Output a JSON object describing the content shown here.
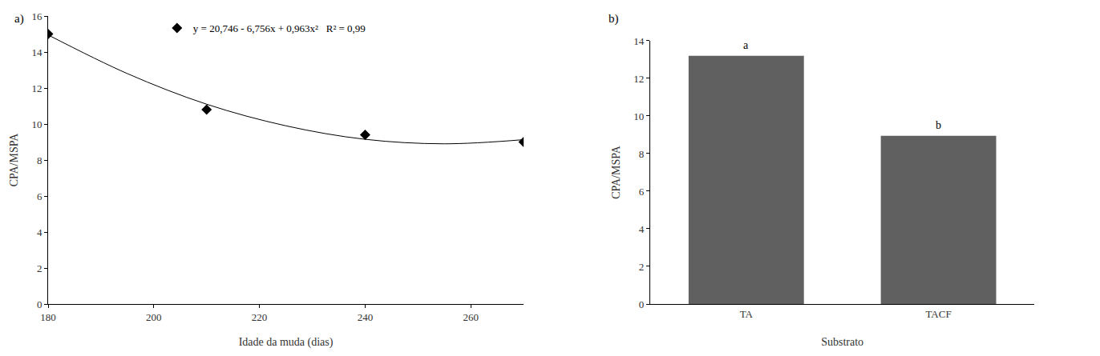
{
  "chart_data": [
    {
      "type": "scatter",
      "title": "a)",
      "x_label": "Idade da muda (dias)",
      "y_label": "CPA/MSPA",
      "series": [
        {
          "name": "y = 20,746 - 6,756x + 0,963x²   R² = 0,99",
          "type": "scatter",
          "marker": "diamond",
          "color": "#000000",
          "x": [
            180,
            210,
            240,
            270
          ],
          "values": [
            15.0,
            10.8,
            9.4,
            9.0
          ]
        },
        {
          "type": "line",
          "line_style": "solid",
          "color": "#000000",
          "x": [
            180,
            195,
            210,
            225,
            240,
            255,
            270
          ],
          "values": [
            14.95,
            12.8,
            11.1,
            9.9,
            9.15,
            8.9,
            9.13
          ]
        }
      ],
      "xlim": [
        180,
        270
      ],
      "xticks": [
        180,
        200,
        220,
        240,
        260
      ],
      "ylim": [
        0,
        16
      ],
      "yticks": [
        0,
        2,
        4,
        6,
        8,
        10,
        12,
        14,
        16
      ],
      "grid": false,
      "legend": "top"
    },
    {
      "type": "bar",
      "title": "b)",
      "x_label": "Substrato",
      "y_label": "CPA/MSPA",
      "categories": [
        "TA",
        "TACF"
      ],
      "values": [
        13.2,
        8.95
      ],
      "color": "#606060",
      "annotations": [
        {
          "category": "TA",
          "text": "a"
        },
        {
          "category": "TACF",
          "text": "b"
        }
      ],
      "ylim": [
        0,
        14
      ],
      "yticks": [
        0,
        2,
        4,
        6,
        8,
        10,
        12,
        14
      ],
      "grid": false
    }
  ]
}
